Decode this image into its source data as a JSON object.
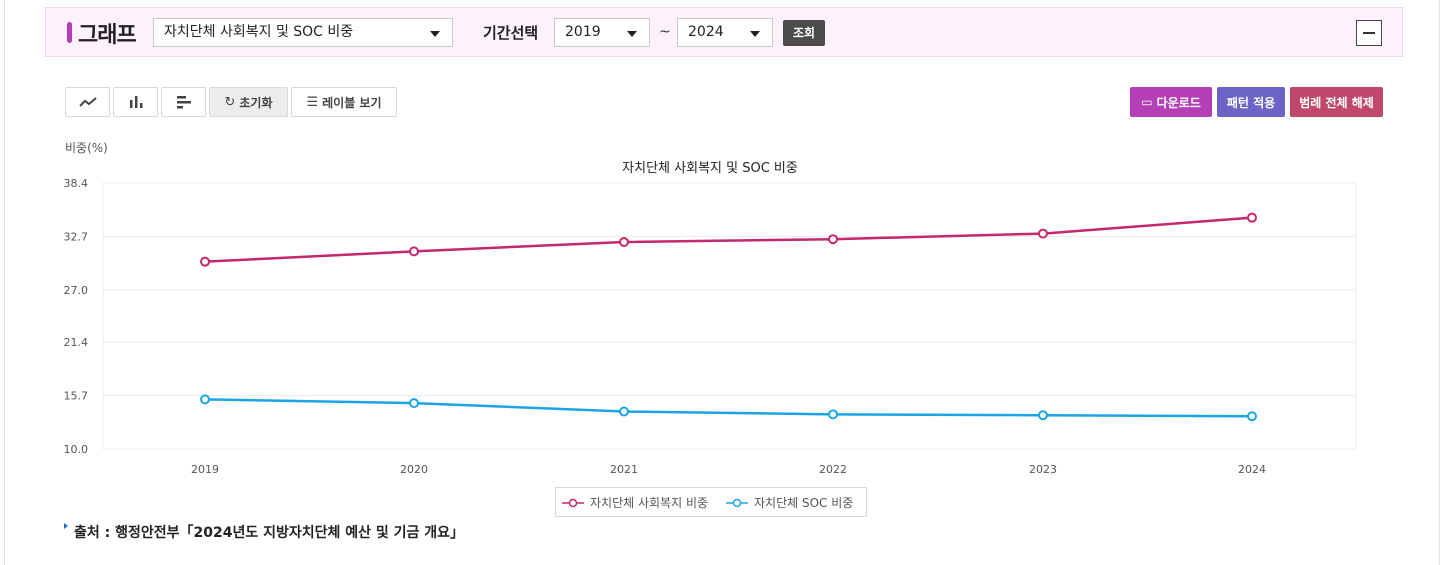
{
  "header": {
    "title": "그래프",
    "indicator_select": "자치단체 사회복지 및 SOC 비중",
    "period_label": "기간선택",
    "start_year": "2019",
    "tilde": "~",
    "end_year": "2024",
    "lookup_label": "조회"
  },
  "toolbar": {
    "reset_label": "초기화",
    "labels_label": "레이블 보기",
    "download_label": "다운로드",
    "pattern_label": "패턴 적용",
    "legend_clear_label": "범례 전체 해제",
    "colors": {
      "download": "#b53fb6",
      "pattern": "#6b63c6",
      "legend_clear": "#c0486a"
    }
  },
  "chart_data": {
    "type": "line",
    "title": "자치단체 사회복지 및 SOC 비중",
    "ylabel": "비중(%)",
    "xlabel": "",
    "categories": [
      "2019",
      "2020",
      "2021",
      "2022",
      "2023",
      "2024"
    ],
    "ylim": [
      10.0,
      38.4
    ],
    "yticks": [
      "10.0",
      "15.7",
      "21.4",
      "27.0",
      "32.7",
      "38.4"
    ],
    "grid": true,
    "legend_position": "bottom",
    "series": [
      {
        "name": "자치단체 사회복지 비중",
        "color": "#c4286e",
        "values": [
          30.0,
          31.1,
          32.1,
          32.4,
          33.0,
          34.7
        ]
      },
      {
        "name": "자치단체 SOC 비중",
        "color": "#1aa6e6",
        "values": [
          15.3,
          14.9,
          14.0,
          13.7,
          13.6,
          13.5
        ]
      }
    ]
  },
  "source": "출처 : 행정안전부「2024년도 지방자치단체 예산 및 기금 개요」"
}
